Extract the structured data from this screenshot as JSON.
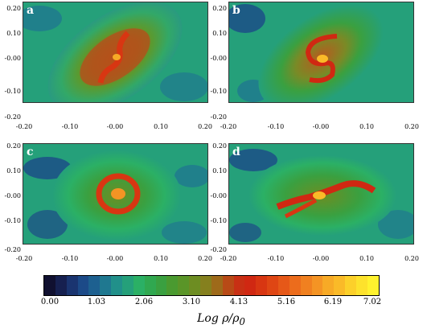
{
  "panels": [
    {
      "label": "a"
    },
    {
      "label": "b"
    },
    {
      "label": "c"
    },
    {
      "label": "d"
    }
  ],
  "axes": {
    "y_ticks": [
      "0.20",
      "0.10",
      "-0.00",
      "-0.10",
      "-0.20"
    ],
    "x_ticks": [
      "-0.20",
      "-0.10",
      "-0.00",
      "0.10",
      "0.20"
    ]
  },
  "colorbar": {
    "ticks": [
      "0.00",
      "1.03",
      "2.06",
      "3.10",
      "4.13",
      "5.16",
      "6.19",
      "7.02"
    ],
    "title": "Log ρ/ρ",
    "title_sub": "0",
    "colors": [
      "#101030",
      "#162050",
      "#1a3470",
      "#1c4a88",
      "#1d6090",
      "#1f7890",
      "#21908a",
      "#25a07a",
      "#2bb065",
      "#30a850",
      "#3aa040",
      "#4a9a30",
      "#5a9528",
      "#6d8d22",
      "#85801e",
      "#9e6a1a",
      "#b84a16",
      "#c83014",
      "#d02812",
      "#d83612",
      "#df4614",
      "#e65818",
      "#ec6c1c",
      "#f08020",
      "#f49424",
      "#f7aa26",
      "#faba28",
      "#fcd02a",
      "#fde22c",
      "#fff22e"
    ]
  }
}
